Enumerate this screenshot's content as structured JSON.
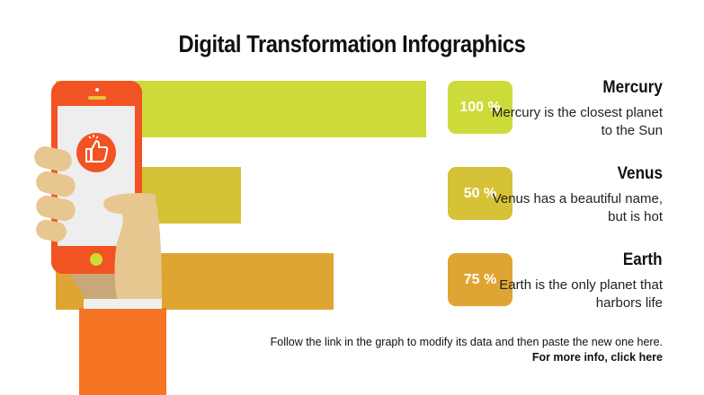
{
  "title": "Digital Transformation Infographics",
  "chart_data": {
    "type": "bar",
    "orientation": "horizontal",
    "categories": [
      "Mercury",
      "Venus",
      "Earth"
    ],
    "values": [
      100,
      50,
      75
    ],
    "unit": "%",
    "xlim": [
      0,
      100
    ],
    "colors": [
      "#CCDB3A",
      "#D5C236",
      "#DFA533"
    ],
    "labels": [
      "100 %",
      "50 %",
      "75 %"
    ],
    "descriptions": [
      "Mercury is the closest planet to the Sun",
      "Venus has a beautiful name, but is hot",
      "Earth is the only planet that harbors life"
    ]
  },
  "footer": {
    "note": "Follow the link in the graph to modify its data and then paste the new one here.",
    "link": "For more info, click here"
  },
  "icons": {
    "illustration": "hand-holding-phone",
    "screen_icon": "thumbs-up-icon"
  }
}
